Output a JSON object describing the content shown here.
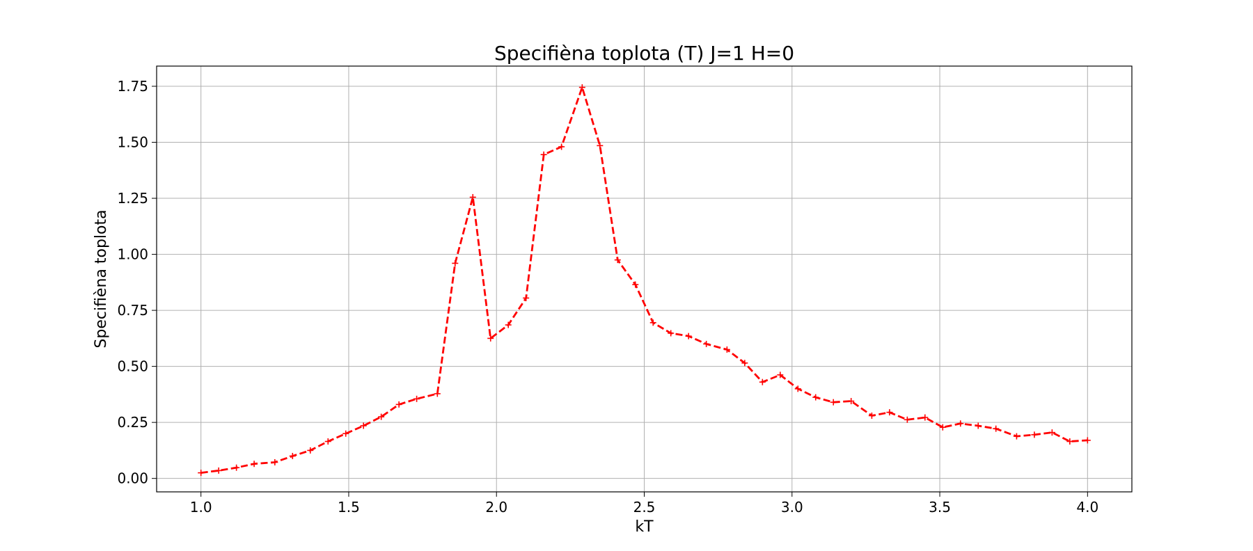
{
  "chart_data": {
    "type": "line",
    "title": "Specifièna toplota (T) J=1 H=0",
    "xlabel": "kT",
    "ylabel": "Specifièna toplota",
    "xlim": [
      0.85,
      4.15
    ],
    "ylim": [
      -0.06,
      1.84
    ],
    "xticks": [
      "1.0",
      "1.5",
      "2.0",
      "2.5",
      "3.0",
      "3.5",
      "4.0"
    ],
    "yticks": [
      "0.00",
      "0.25",
      "0.50",
      "0.75",
      "1.00",
      "1.25",
      "1.50",
      "1.75"
    ],
    "grid": true,
    "line_color": "#ff0000",
    "line_style": "dashed",
    "marker": "+",
    "series": [
      {
        "x": [
          1.0,
          1.06,
          1.12,
          1.18,
          1.25,
          1.31,
          1.37,
          1.43,
          1.49,
          1.55,
          1.61,
          1.67,
          1.73,
          1.8,
          1.86,
          1.92,
          1.98,
          2.04,
          2.1,
          2.16,
          2.22,
          2.29,
          2.35,
          2.41,
          2.47,
          2.53,
          2.59,
          2.65,
          2.71,
          2.78,
          2.84,
          2.9,
          2.96,
          3.02,
          3.08,
          3.14,
          3.2,
          3.27,
          3.33,
          3.39,
          3.45,
          3.51,
          3.57,
          3.63,
          3.69,
          3.76,
          3.82,
          3.88,
          3.94,
          4.0
        ],
        "values": [
          0.025,
          0.035,
          0.048,
          0.065,
          0.072,
          0.1,
          0.125,
          0.165,
          0.2,
          0.235,
          0.275,
          0.33,
          0.355,
          0.378,
          0.96,
          1.255,
          0.625,
          0.685,
          0.805,
          1.445,
          1.48,
          1.745,
          1.485,
          0.975,
          0.865,
          0.695,
          0.648,
          0.635,
          0.6,
          0.575,
          0.515,
          0.43,
          0.462,
          0.4,
          0.362,
          0.34,
          0.345,
          0.28,
          0.295,
          0.262,
          0.272,
          0.228,
          0.245,
          0.235,
          0.222,
          0.188,
          0.195,
          0.205,
          0.165,
          0.17
        ]
      }
    ]
  }
}
